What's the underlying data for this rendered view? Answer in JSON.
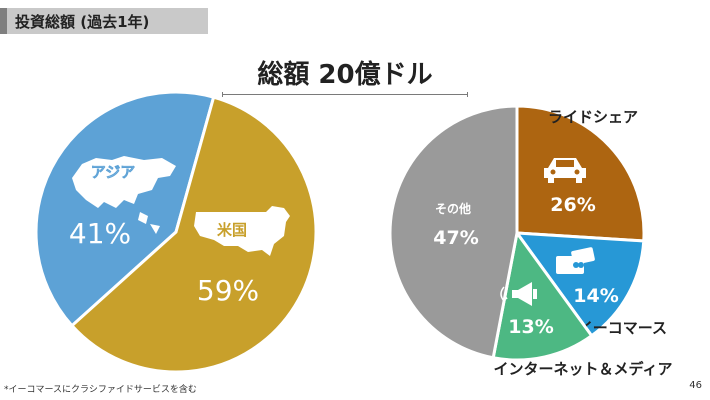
{
  "header": {
    "section_title": "投資総額 (過去1年)"
  },
  "main_title": "総額 20億ドル",
  "footnote": "*イーコマースにクラシファイドサービスを含む",
  "page_number": "46",
  "colors": {
    "asia": "#5da2d6",
    "usa": "#c8a02b",
    "rideshare": "#ad6511",
    "ecommerce": "#2798d6",
    "internet_media": "#4db883",
    "other": "#9a9a9a"
  },
  "icons": [
    "asia-map-icon",
    "usa-map-icon",
    "car-icon",
    "card-icon",
    "megaphone-icon"
  ],
  "chart_data": [
    {
      "type": "pie",
      "title": "",
      "slices": [
        {
          "label": "アジア",
          "value": 41,
          "value_label": "41%",
          "color": "#5da2d6",
          "icon": "asia-map-icon"
        },
        {
          "label": "米国",
          "value": 59,
          "value_label": "59%",
          "color": "#c8a02b",
          "icon": "usa-map-icon"
        }
      ]
    },
    {
      "type": "pie",
      "title": "",
      "slices": [
        {
          "label": "ライドシェア",
          "value": 26,
          "value_label": "26%",
          "color": "#ad6511",
          "icon": "car-icon"
        },
        {
          "label": "イーコマース",
          "value": 14,
          "value_label": "14%",
          "color": "#2798d6",
          "icon": "card-icon"
        },
        {
          "label": "インターネット＆メディア",
          "value": 13,
          "value_label": "13%",
          "color": "#4db883",
          "icon": "megaphone-icon"
        },
        {
          "label": "その他",
          "value": 47,
          "value_label": "47%",
          "color": "#9a9a9a"
        }
      ]
    }
  ]
}
